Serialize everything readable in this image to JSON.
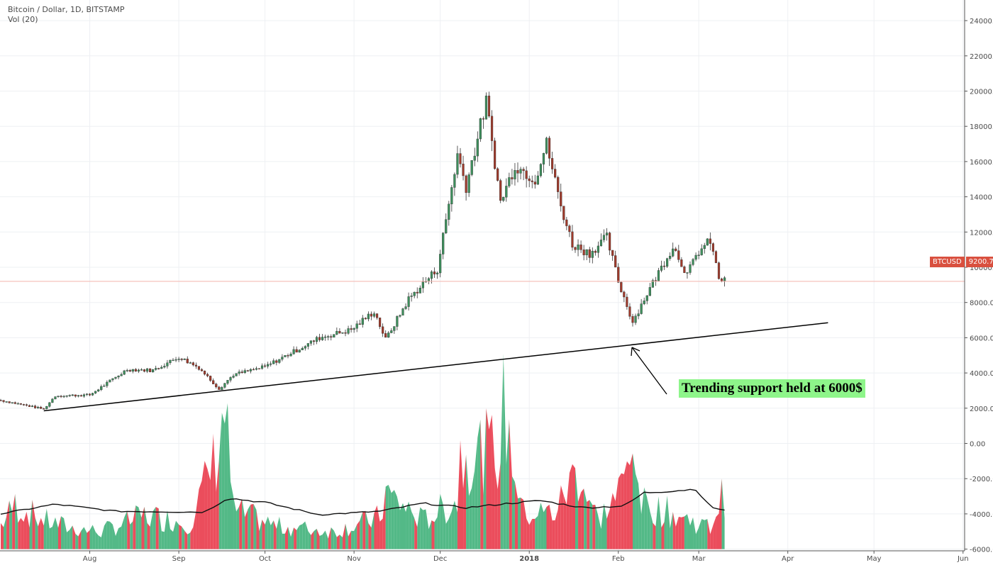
{
  "legend": {
    "title": "Bitcoin / Dollar, 1D, BITSTAMP",
    "volume": "Vol (20)"
  },
  "annotation": {
    "text": "Trending support held at 6000$"
  },
  "price_tag": {
    "symbol": "BTCUSD",
    "value": "9200.70"
  },
  "colors": {
    "up": "#53b987",
    "down": "#eb4d5c",
    "candle_up": "#3d8f5c",
    "candle_down": "#a03a2b",
    "price_line": "#f4b5ae",
    "grid": "#eef0f3",
    "annotation_bg": "#8ef58a"
  },
  "chart_data": {
    "type": "candlestick",
    "symbol": "BTCUSD",
    "interval": "1D",
    "exchange": "BITSTAMP",
    "y_axis_labels": [
      "24000.00",
      "22000.00",
      "20000.00",
      "18000.00",
      "16000.00",
      "14000.00",
      "12000.00",
      "10000.00",
      "8000.00",
      "6000.00",
      "4000.00",
      "2000.00",
      "0.00",
      "-2000.00",
      "-4000.00",
      "-6000.00"
    ],
    "x_axis_labels": [
      "Aug",
      "Sep",
      "Oct",
      "Nov",
      "Dec",
      "2018",
      "Feb",
      "Mar",
      "Apr",
      "May",
      "Jun"
    ],
    "ylim": [
      -6300,
      25000
    ],
    "last_price": 9200.7,
    "trendline": {
      "from": [
        "2017-07-16",
        1850
      ],
      "to": [
        "2018-04-15",
        6850
      ]
    },
    "price_keypoints": [
      [
        "2017-07-01",
        2450
      ],
      [
        "2017-07-16",
        1950
      ],
      [
        "2017-07-20",
        2700
      ],
      [
        "2017-08-01",
        2750
      ],
      [
        "2017-08-14",
        4200
      ],
      [
        "2017-08-23",
        4150
      ],
      [
        "2017-09-01",
        4900
      ],
      [
        "2017-09-08",
        4300
      ],
      [
        "2017-09-15",
        3100
      ],
      [
        "2017-09-20",
        3900
      ],
      [
        "2017-10-01",
        4350
      ],
      [
        "2017-10-12",
        5300
      ],
      [
        "2017-10-20",
        6000
      ],
      [
        "2017-10-31",
        6450
      ],
      [
        "2017-11-08",
        7500
      ],
      [
        "2017-11-12",
        5900
      ],
      [
        "2017-11-20",
        8200
      ],
      [
        "2017-11-30",
        9900
      ],
      [
        "2017-12-07",
        16400
      ],
      [
        "2017-12-10",
        14600
      ],
      [
        "2017-12-17",
        19400
      ],
      [
        "2017-12-22",
        13700
      ],
      [
        "2017-12-27",
        15800
      ],
      [
        "2018-01-03",
        15000
      ],
      [
        "2018-01-07",
        17000
      ],
      [
        "2018-01-12",
        13500
      ],
      [
        "2018-01-16",
        11300
      ],
      [
        "2018-01-22",
        10800
      ],
      [
        "2018-01-28",
        11700
      ],
      [
        "2018-02-01",
        9200
      ],
      [
        "2018-02-06",
        6900
      ],
      [
        "2018-02-10",
        8200
      ],
      [
        "2018-02-20",
        11200
      ],
      [
        "2018-02-25",
        9600
      ],
      [
        "2018-03-01",
        10900
      ],
      [
        "2018-03-05",
        11500
      ],
      [
        "2018-03-08",
        9400
      ],
      [
        "2018-03-10",
        9200
      ]
    ],
    "volume_keypoints": [
      [
        "2017-07-01",
        1400
      ],
      [
        "2017-07-06",
        2500
      ],
      [
        "2017-07-15",
        1700
      ],
      [
        "2017-07-25",
        1200
      ],
      [
        "2017-08-05",
        1000
      ],
      [
        "2017-08-20",
        1900
      ],
      [
        "2017-09-05",
        1500
      ],
      [
        "2017-09-14",
        5300
      ],
      [
        "2017-09-17",
        8000
      ],
      [
        "2017-09-20",
        2200
      ],
      [
        "2017-10-05",
        1300
      ],
      [
        "2017-10-25",
        1000
      ],
      [
        "2017-11-10",
        1800
      ],
      [
        "2017-11-12",
        3200
      ],
      [
        "2017-11-25",
        1600
      ],
      [
        "2017-12-07",
        2800
      ],
      [
        "2017-12-08",
        5400
      ],
      [
        "2017-12-22",
        5600
      ],
      [
        "2017-12-23",
        7900
      ],
      [
        "2017-12-30",
        2000
      ],
      [
        "2018-01-10",
        2100
      ],
      [
        "2018-01-16",
        4000
      ],
      [
        "2018-01-17",
        4800
      ],
      [
        "2018-01-25",
        1600
      ],
      [
        "2018-02-02",
        3400
      ],
      [
        "2018-02-05",
        5000
      ],
      [
        "2018-02-06",
        8600
      ],
      [
        "2018-02-08",
        2600
      ],
      [
        "2018-02-20",
        2000
      ],
      [
        "2018-03-05",
        1200
      ],
      [
        "2018-03-08",
        2600
      ],
      [
        "2018-03-10",
        3200
      ]
    ],
    "volume_ma_keypoints": [
      [
        "2017-07-01",
        2000
      ],
      [
        "2017-07-20",
        2550
      ],
      [
        "2017-08-10",
        2150
      ],
      [
        "2017-09-10",
        2100
      ],
      [
        "2017-09-18",
        2900
      ],
      [
        "2017-10-01",
        2650
      ],
      [
        "2017-10-20",
        1950
      ],
      [
        "2017-11-10",
        2150
      ],
      [
        "2017-11-25",
        2600
      ],
      [
        "2017-12-10",
        2350
      ],
      [
        "2017-12-25",
        2600
      ],
      [
        "2018-01-05",
        2750
      ],
      [
        "2018-01-20",
        2350
      ],
      [
        "2018-02-03",
        2450
      ],
      [
        "2018-02-10",
        3200
      ],
      [
        "2018-02-28",
        3400
      ],
      [
        "2018-03-05",
        2400
      ],
      [
        "2018-03-10",
        2200
      ]
    ]
  }
}
